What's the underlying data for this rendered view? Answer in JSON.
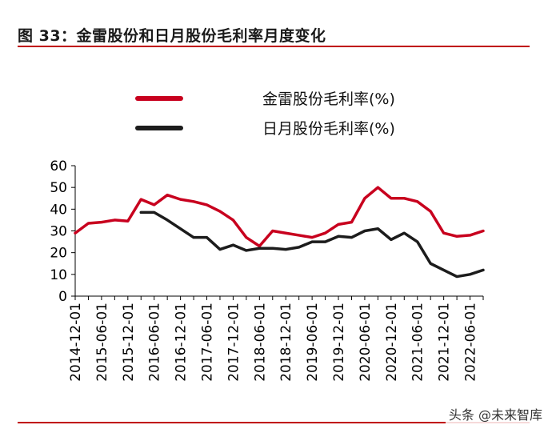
{
  "figure_title": "图 33：金雷股份和日月股份毛利率月度变化",
  "watermark": "头条 @未来智库",
  "colors": {
    "series_1": "#c8001e",
    "series_2": "#1c1c1c",
    "rule": "#c00000"
  },
  "chart_data": {
    "type": "line",
    "title": "",
    "xlabel": "",
    "ylabel": "",
    "ylim": [
      0,
      60
    ],
    "yticks": [
      0,
      10,
      20,
      30,
      40,
      50,
      60
    ],
    "grid": false,
    "legend_position": "top",
    "x_tick_labels": [
      "2014-12-01",
      "2015-06-01",
      "2015-12-01",
      "2016-06-01",
      "2016-12-01",
      "2017-06-01",
      "2017-12-01",
      "2018-06-01",
      "2018-12-01",
      "2019-06-01",
      "2019-12-01",
      "2020-06-01",
      "2020-12-01",
      "2021-06-01",
      "2021-12-01",
      "2022-06-01"
    ],
    "x": [
      "2014-12",
      "2015-03",
      "2015-06",
      "2015-09",
      "2015-12",
      "2016-03",
      "2016-06",
      "2016-09",
      "2016-12",
      "2017-03",
      "2017-06",
      "2017-09",
      "2017-12",
      "2018-03",
      "2018-06",
      "2018-09",
      "2018-12",
      "2019-03",
      "2019-06",
      "2019-09",
      "2019-12",
      "2020-03",
      "2020-06",
      "2020-09",
      "2020-12",
      "2021-03",
      "2021-06",
      "2021-09",
      "2021-12",
      "2022-03",
      "2022-06",
      "2022-09"
    ],
    "series": [
      {
        "name": "金雷股份毛利率(%)",
        "values": [
          29,
          33.5,
          34,
          35,
          34.5,
          44.5,
          42,
          46.5,
          44.5,
          43.5,
          42,
          39,
          35,
          27,
          23,
          30,
          29,
          28,
          27,
          29,
          33,
          34,
          45,
          50,
          45,
          45,
          43.5,
          39,
          29,
          27.5,
          28,
          30
        ]
      },
      {
        "name": "日月股份毛利率(%)",
        "values": [
          null,
          null,
          null,
          null,
          null,
          38.5,
          38.5,
          35,
          31,
          27,
          27,
          21.5,
          23.5,
          21,
          22,
          22,
          21.5,
          22.5,
          25,
          25,
          27.5,
          27,
          30,
          31,
          26,
          29,
          25,
          15,
          12,
          9,
          10,
          12
        ]
      }
    ]
  }
}
